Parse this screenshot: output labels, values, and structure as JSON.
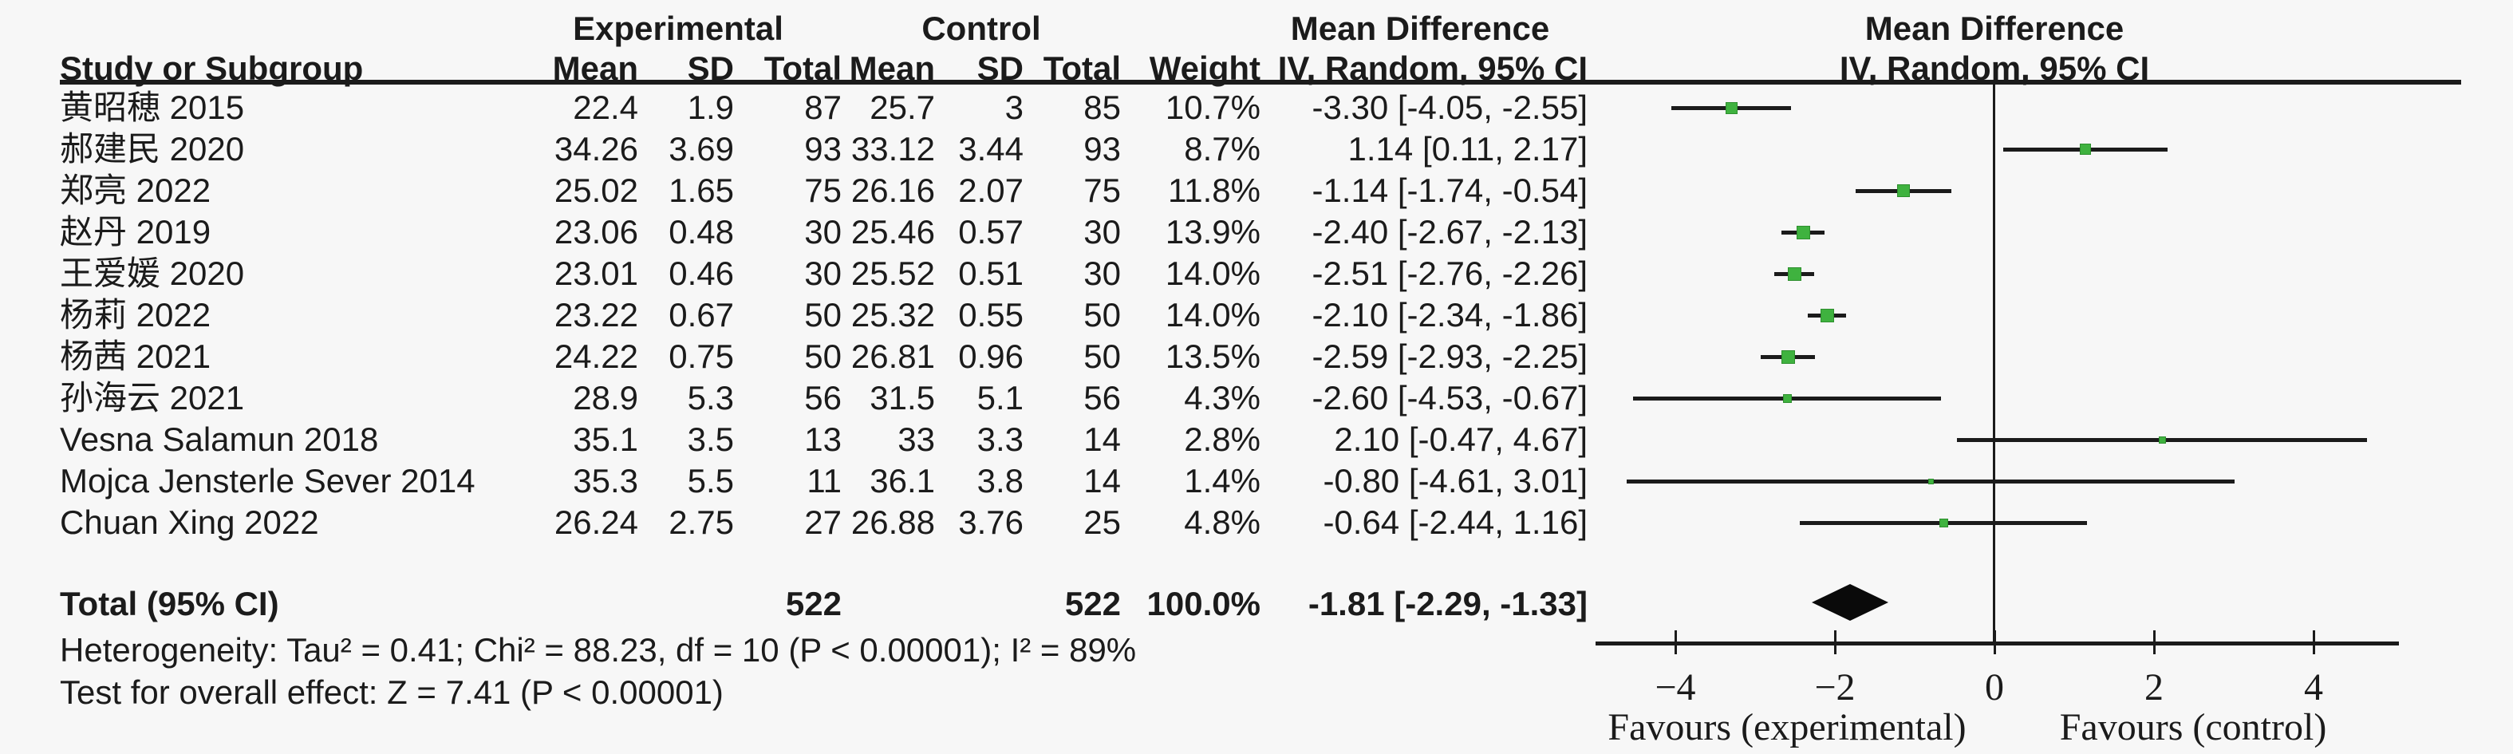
{
  "header": {
    "study_col": "Study or Subgroup",
    "group1": "Experimental",
    "group2": "Control",
    "md_col_title": "Mean Difference",
    "md_plot_title": "Mean Difference",
    "sub": {
      "e_mean": "Mean",
      "e_sd": "SD",
      "e_total": "Total",
      "c_mean": "Mean",
      "c_sd": "SD",
      "c_total": "Total",
      "weight": "Weight",
      "md_col_sub": "IV, Random, 95% CI",
      "md_plot_sub": "IV, Random, 95% CI"
    }
  },
  "totals": {
    "label": "Total (95% CI)",
    "e_total": "522",
    "c_total": "522",
    "weight": "100.0%",
    "md_label": "-1.81 [-2.29, -1.33]"
  },
  "footer": {
    "heterogeneity": "Heterogeneity: Tau² = 0.41; Chi² = 88.23, df = 10 (P < 0.00001); I² = 89%",
    "overall_effect": "Test for overall effect: Z = 7.41 (P < 0.00001)"
  },
  "chart_data": {
    "type": "forest",
    "effect_measure": "Mean Difference, IV, Random, 95% CI",
    "colors": {
      "marker_green": "#3fb23f",
      "line_black": "#1b1b1b",
      "diamond_black": "#0a0a0a"
    },
    "x_axis": {
      "range": [
        -5,
        5
      ],
      "ticks": [
        -4,
        -2,
        0,
        2,
        4
      ],
      "tick_labels": [
        "−4",
        "−2",
        "0",
        "2",
        "4"
      ],
      "left_label": "Favours (experimental)",
      "right_label": "Favours (control)"
    },
    "studies": [
      {
        "name": "黄昭穂 2015",
        "e_mean": "22.4",
        "e_sd": "1.9",
        "e_total": "87",
        "c_mean": "25.7",
        "c_sd": "3",
        "c_total": "85",
        "weight": "10.7%",
        "weight_pct": 10.7,
        "md": -3.3,
        "ci_lo": -4.05,
        "ci_hi": -2.55,
        "md_label": "-3.30 [-4.05, -2.55]"
      },
      {
        "name": "郝建民 2020",
        "e_mean": "34.26",
        "e_sd": "3.69",
        "e_total": "93",
        "c_mean": "33.12",
        "c_sd": "3.44",
        "c_total": "93",
        "weight": "8.7%",
        "weight_pct": 8.7,
        "md": 1.14,
        "ci_lo": 0.11,
        "ci_hi": 2.17,
        "md_label": "1.14 [0.11, 2.17]"
      },
      {
        "name": "郑亮 2022",
        "e_mean": "25.02",
        "e_sd": "1.65",
        "e_total": "75",
        "c_mean": "26.16",
        "c_sd": "2.07",
        "c_total": "75",
        "weight": "11.8%",
        "weight_pct": 11.8,
        "md": -1.14,
        "ci_lo": -1.74,
        "ci_hi": -0.54,
        "md_label": "-1.14 [-1.74, -0.54]"
      },
      {
        "name": "赵丹 2019",
        "e_mean": "23.06",
        "e_sd": "0.48",
        "e_total": "30",
        "c_mean": "25.46",
        "c_sd": "0.57",
        "c_total": "30",
        "weight": "13.9%",
        "weight_pct": 13.9,
        "md": -2.4,
        "ci_lo": -2.67,
        "ci_hi": -2.13,
        "md_label": "-2.40 [-2.67, -2.13]"
      },
      {
        "name": "王爱媛 2020",
        "e_mean": "23.01",
        "e_sd": "0.46",
        "e_total": "30",
        "c_mean": "25.52",
        "c_sd": "0.51",
        "c_total": "30",
        "weight": "14.0%",
        "weight_pct": 14.0,
        "md": -2.51,
        "ci_lo": -2.76,
        "ci_hi": -2.26,
        "md_label": "-2.51 [-2.76, -2.26]"
      },
      {
        "name": "杨莉 2022",
        "e_mean": "23.22",
        "e_sd": "0.67",
        "e_total": "50",
        "c_mean": "25.32",
        "c_sd": "0.55",
        "c_total": "50",
        "weight": "14.0%",
        "weight_pct": 14.0,
        "md": -2.1,
        "ci_lo": -2.34,
        "ci_hi": -1.86,
        "md_label": "-2.10 [-2.34, -1.86]"
      },
      {
        "name": "杨茜 2021",
        "e_mean": "24.22",
        "e_sd": "0.75",
        "e_total": "50",
        "c_mean": "26.81",
        "c_sd": "0.96",
        "c_total": "50",
        "weight": "13.5%",
        "weight_pct": 13.5,
        "md": -2.59,
        "ci_lo": -2.93,
        "ci_hi": -2.25,
        "md_label": "-2.59 [-2.93, -2.25]"
      },
      {
        "name": "孙海云 2021",
        "e_mean": "28.9",
        "e_sd": "5.3",
        "e_total": "56",
        "c_mean": "31.5",
        "c_sd": "5.1",
        "c_total": "56",
        "weight": "4.3%",
        "weight_pct": 4.3,
        "md": -2.6,
        "ci_lo": -4.53,
        "ci_hi": -0.67,
        "md_label": "-2.60 [-4.53, -0.67]"
      },
      {
        "name": "Vesna Salamun 2018",
        "e_mean": "35.1",
        "e_sd": "3.5",
        "e_total": "13",
        "c_mean": "33",
        "c_sd": "3.3",
        "c_total": "14",
        "weight": "2.8%",
        "weight_pct": 2.8,
        "md": 2.1,
        "ci_lo": -0.47,
        "ci_hi": 4.67,
        "md_label": "2.10 [-0.47, 4.67]"
      },
      {
        "name": "Mojca Jensterle Sever 2014",
        "e_mean": "35.3",
        "e_sd": "5.5",
        "e_total": "11",
        "c_mean": "36.1",
        "c_sd": "3.8",
        "c_total": "14",
        "weight": "1.4%",
        "weight_pct": 1.4,
        "md": -0.8,
        "ci_lo": -4.61,
        "ci_hi": 3.01,
        "md_label": "-0.80 [-4.61, 3.01]"
      },
      {
        "name": "Chuan Xing 2022",
        "e_mean": "26.24",
        "e_sd": "2.75",
        "e_total": "27",
        "c_mean": "26.88",
        "c_sd": "3.76",
        "c_total": "25",
        "weight": "4.8%",
        "weight_pct": 4.8,
        "md": -0.64,
        "ci_lo": -2.44,
        "ci_hi": 1.16,
        "md_label": "-0.64 [-2.44, 1.16]"
      }
    ],
    "total": {
      "md": -1.81,
      "ci_lo": -2.29,
      "ci_hi": -1.33
    }
  }
}
